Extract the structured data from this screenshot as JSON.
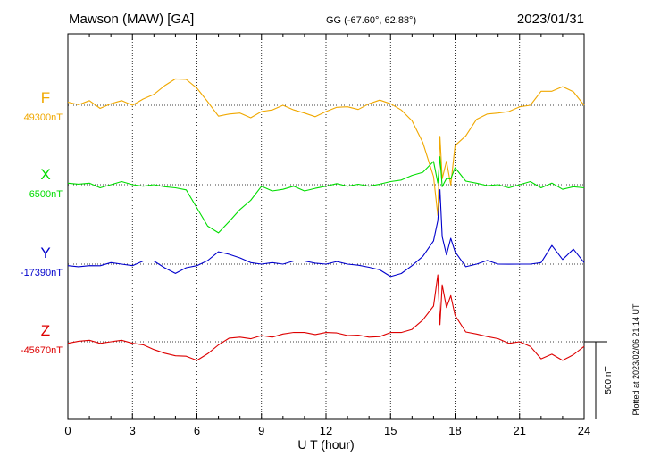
{
  "header": {
    "station": "Mawson (MAW)  [GA]",
    "coords": "GG (-67.60°,  62.88°)",
    "date": "2023/01/31"
  },
  "footer": {
    "plotted": "Plotted at 2023/02/06 21:14 UT"
  },
  "chart_data": {
    "type": "line",
    "title": "Mawson (MAW)  [GA]",
    "xlabel": "U T (hour)",
    "ylabel": "",
    "xlim": [
      0,
      24
    ],
    "x_ticks": [
      "0",
      "3",
      "6",
      "9",
      "12",
      "15",
      "18",
      "21",
      "24"
    ],
    "grid": true,
    "scale_bar": {
      "label": "500 nT",
      "value_nT": 500
    },
    "series": [
      {
        "name": "F",
        "baseline_label": "49300nT",
        "baseline_nT": 49300,
        "color": "#f0a800",
        "x": [
          0,
          0.5,
          1,
          1.5,
          2,
          2.5,
          3,
          3.5,
          4,
          4.5,
          5,
          5.5,
          6,
          6.5,
          7,
          7.5,
          8,
          8.5,
          9,
          9.5,
          10,
          10.5,
          11,
          11.5,
          12,
          12.5,
          13,
          13.5,
          14,
          14.5,
          15,
          15.5,
          16,
          16.5,
          17,
          17.2,
          17.3,
          17.4,
          17.6,
          17.8,
          18,
          18.5,
          19,
          19.5,
          20,
          20.5,
          21,
          21.5,
          22,
          22.5,
          23,
          23.5,
          24
        ],
        "values": [
          49320,
          49300,
          49330,
          49290,
          49310,
          49330,
          49300,
          49330,
          49370,
          49430,
          49470,
          49460,
          49410,
          49330,
          49230,
          49240,
          49250,
          49230,
          49260,
          49270,
          49300,
          49260,
          49250,
          49230,
          49260,
          49280,
          49290,
          49280,
          49310,
          49330,
          49310,
          49280,
          49200,
          49060,
          48840,
          48580,
          49100,
          48830,
          48940,
          48780,
          49040,
          49110,
          49210,
          49240,
          49250,
          49270,
          49290,
          49300,
          49390,
          49380,
          49420,
          49390,
          49300
        ]
      },
      {
        "name": "X",
        "baseline_label": "6500nT",
        "baseline_nT": 6500,
        "color": "#00dd00",
        "x": [
          0,
          0.5,
          1,
          1.5,
          2,
          2.5,
          3,
          3.5,
          4,
          4.5,
          5,
          5.5,
          6,
          6.5,
          7,
          7.5,
          8,
          8.5,
          9,
          9.5,
          10,
          10.5,
          11,
          11.5,
          12,
          12.5,
          13,
          13.5,
          14,
          14.5,
          15,
          15.5,
          16,
          16.5,
          17,
          17.2,
          17.3,
          17.4,
          17.6,
          17.8,
          18,
          18.5,
          19,
          19.5,
          20,
          20.5,
          21,
          21.5,
          22,
          22.5,
          23,
          23.5,
          24
        ],
        "values": [
          6510,
          6500,
          6510,
          6490,
          6500,
          6520,
          6500,
          6480,
          6500,
          6490,
          6480,
          6460,
          6350,
          6240,
          6190,
          6260,
          6340,
          6410,
          6490,
          6460,
          6470,
          6480,
          6460,
          6480,
          6490,
          6500,
          6490,
          6510,
          6490,
          6500,
          6520,
          6540,
          6560,
          6580,
          6650,
          6500,
          6680,
          6490,
          6540,
          6530,
          6610,
          6530,
          6510,
          6490,
          6500,
          6490,
          6500,
          6520,
          6480,
          6500,
          6470,
          6490,
          6480
        ]
      },
      {
        "name": "Y",
        "baseline_label": "-17390nT",
        "baseline_nT": -17390,
        "color": "#0000cc",
        "x": [
          0,
          0.5,
          1,
          1.5,
          2,
          2.5,
          3,
          3.5,
          4,
          4.5,
          5,
          5.5,
          6,
          6.5,
          7,
          7.5,
          8,
          8.5,
          9,
          9.5,
          10,
          10.5,
          11,
          11.5,
          12,
          12.5,
          13,
          13.5,
          14,
          14.5,
          15,
          15.5,
          16,
          16.5,
          17,
          17.2,
          17.3,
          17.4,
          17.6,
          17.8,
          18,
          18.5,
          19,
          19.5,
          20,
          20.5,
          21,
          21.5,
          22,
          22.5,
          23,
          23.5,
          24
        ],
        "values": [
          -17400,
          -17410,
          -17400,
          -17390,
          -17380,
          -17390,
          -17400,
          -17380,
          -17370,
          -17410,
          -17450,
          -17420,
          -17400,
          -17360,
          -17310,
          -17330,
          -17350,
          -17370,
          -17390,
          -17380,
          -17390,
          -17380,
          -17370,
          -17380,
          -17390,
          -17380,
          -17390,
          -17390,
          -17410,
          -17430,
          -17470,
          -17440,
          -17400,
          -17340,
          -17240,
          -17120,
          -16910,
          -17210,
          -17330,
          -17230,
          -17310,
          -17400,
          -17390,
          -17370,
          -17390,
          -17380,
          -17390,
          -17390,
          -17380,
          -17280,
          -17360,
          -17290,
          -17380
        ]
      },
      {
        "name": "Z",
        "baseline_label": "-45670nT",
        "baseline_nT": -45670,
        "color": "#dd0000",
        "x": [
          0,
          0.5,
          1,
          1.5,
          2,
          2.5,
          3,
          3.5,
          4,
          4.5,
          5,
          5.5,
          6,
          6.5,
          7,
          7.5,
          8,
          8.5,
          9,
          9.5,
          10,
          10.5,
          11,
          11.5,
          12,
          12.5,
          13,
          13.5,
          14,
          14.5,
          15,
          15.5,
          16,
          16.5,
          17,
          17.2,
          17.3,
          17.4,
          17.6,
          17.8,
          18,
          18.5,
          19,
          19.5,
          20,
          20.5,
          21,
          21.5,
          22,
          22.5,
          23,
          23.5,
          24
        ],
        "values": [
          -45680,
          -45670,
          -45660,
          -45670,
          -45670,
          -45660,
          -45680,
          -45700,
          -45720,
          -45740,
          -45760,
          -45770,
          -45790,
          -45740,
          -45690,
          -45650,
          -45640,
          -45640,
          -45630,
          -45640,
          -45620,
          -45620,
          -45610,
          -45620,
          -45610,
          -45620,
          -45630,
          -45620,
          -45640,
          -45640,
          -45610,
          -45600,
          -45590,
          -45530,
          -45440,
          -45250,
          -45560,
          -45300,
          -45450,
          -45380,
          -45500,
          -45600,
          -45620,
          -45640,
          -45650,
          -45670,
          -45670,
          -45700,
          -45780,
          -45760,
          -45790,
          -45750,
          -45700
        ]
      }
    ]
  }
}
